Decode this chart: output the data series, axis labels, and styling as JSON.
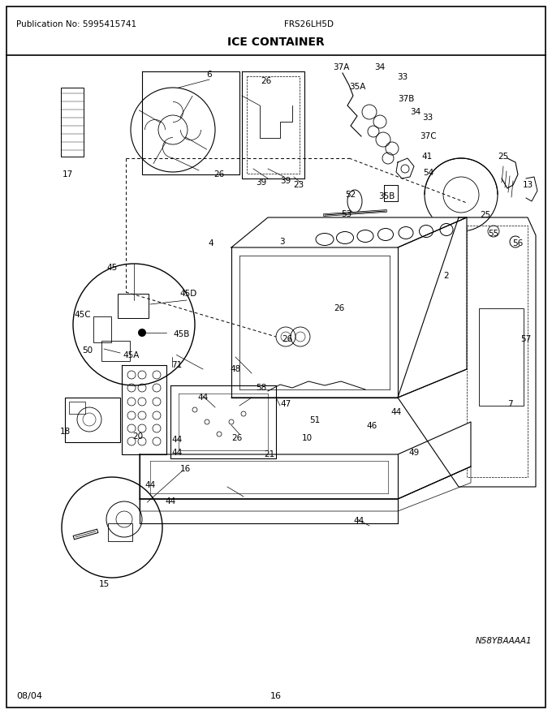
{
  "title": "ICE CONTAINER",
  "pub_no": "Publication No: 5995415741",
  "model": "FRS26LH5D",
  "date": "08/04",
  "page": "16",
  "diagram_id": "N58YBAAAA1",
  "bg_color": "#ffffff",
  "border_color": "#000000",
  "title_fontsize": 10,
  "fig_width": 6.8,
  "fig_height": 8.8,
  "dpi": 100
}
